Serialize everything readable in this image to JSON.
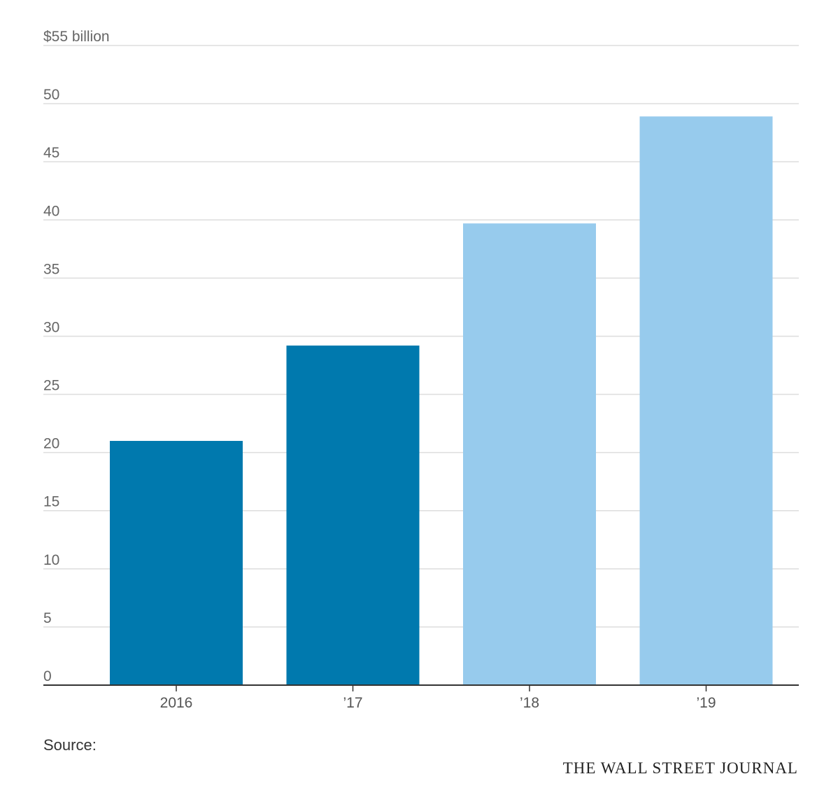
{
  "chart_data": {
    "type": "bar",
    "categories": [
      "2016",
      "’17",
      "’18",
      "’19"
    ],
    "values": [
      21.0,
      29.2,
      39.7,
      48.9
    ],
    "bar_colors": [
      "#0079ae",
      "#0079ae",
      "#97cbed",
      "#97cbed"
    ],
    "ylim": [
      0,
      55
    ],
    "yticks": [
      0,
      5,
      10,
      15,
      20,
      25,
      30,
      35,
      40,
      45,
      50,
      55
    ],
    "ytick_labels": [
      "0",
      "5",
      "10",
      "15",
      "20",
      "25",
      "30",
      "35",
      "40",
      "45",
      "50",
      "$55 billion"
    ],
    "grid": true,
    "title": "",
    "xlabel": "",
    "ylabel": ""
  },
  "footer": {
    "source": "Source:",
    "brand": "THE WALL STREET JOURNAL"
  },
  "colors": {
    "grid": "#dddddd",
    "axis": "#333333"
  }
}
